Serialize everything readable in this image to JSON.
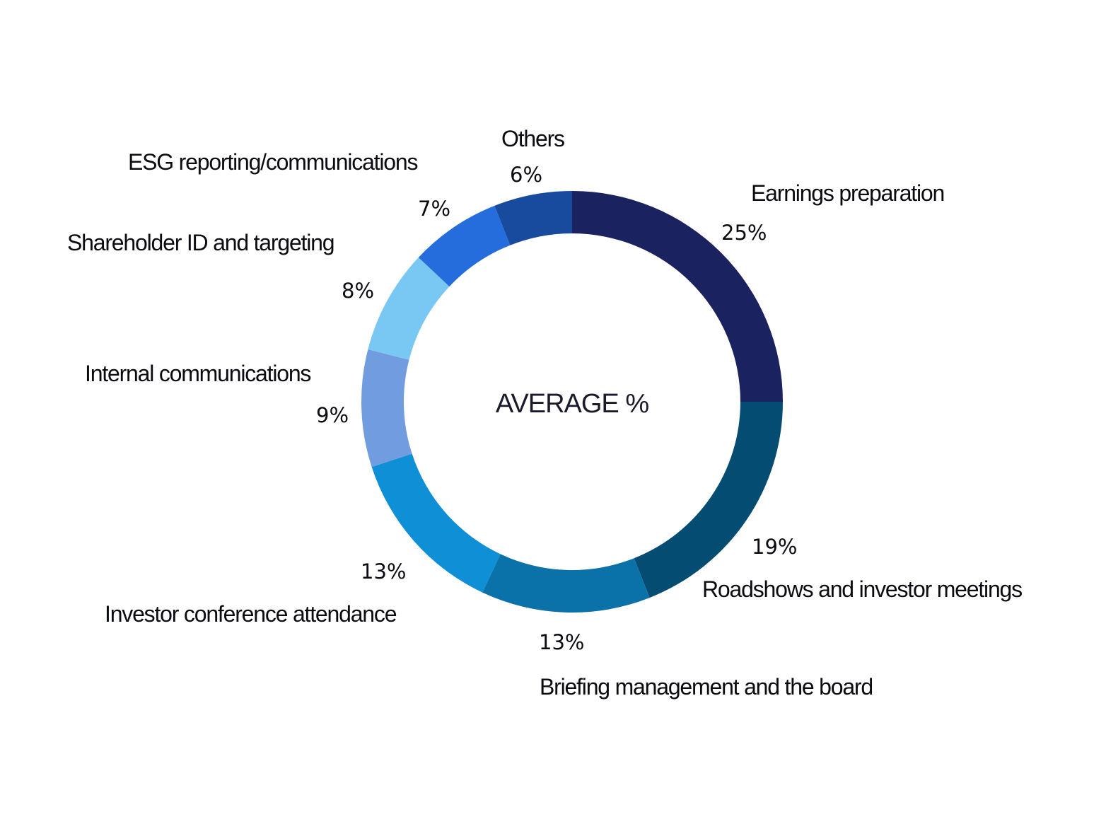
{
  "chart_data": {
    "type": "pie",
    "variant": "donut",
    "center_label": "AVERAGE %",
    "start_angle_deg": 0,
    "direction": "clockwise",
    "slices": [
      {
        "label": "Earnings preparation",
        "value": 25,
        "display": "25%",
        "color": "#1b2260"
      },
      {
        "label": "Roadshows and investor meetings",
        "value": 19,
        "display": "19%",
        "color": "#044c72"
      },
      {
        "label": "Briefing management and the board",
        "value": 13,
        "display": "13%",
        "color": "#0b71a9"
      },
      {
        "label": "Investor conference attendance",
        "value": 13,
        "display": "13%",
        "color": "#0f8fd6"
      },
      {
        "label": "Internal communications",
        "value": 9,
        "display": "9%",
        "color": "#729ce0"
      },
      {
        "label": "Shareholder ID and targeting",
        "value": 8,
        "display": "8%",
        "color": "#79c8f3"
      },
      {
        "label": "ESG reporting/communications",
        "value": 7,
        "display": "7%",
        "color": "#256ddc"
      },
      {
        "label": "Others",
        "value": 6,
        "display": "6%",
        "color": "#184b9d"
      }
    ]
  }
}
